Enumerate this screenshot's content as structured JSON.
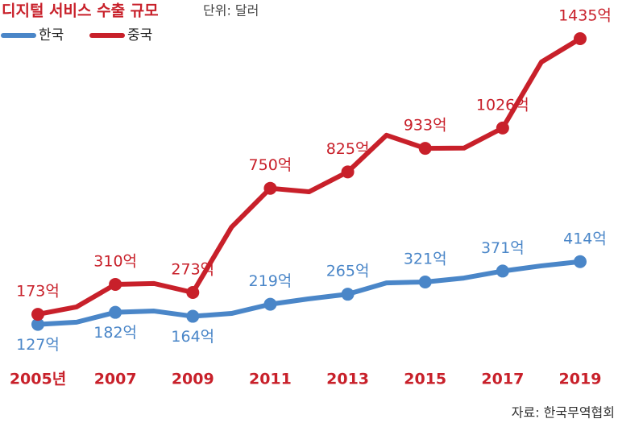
{
  "chart_data": {
    "type": "line",
    "title": "디지털 서비스 수출 규모",
    "subtitle": "단위: 달러",
    "source": "자료: 한국무역협회",
    "categories": [
      "2005년",
      null,
      "2007",
      null,
      "2009",
      null,
      "2011",
      null,
      "2013",
      null,
      "2015",
      null,
      "2017",
      null,
      "2019"
    ],
    "series": [
      {
        "name": "한국",
        "color": "#4a86c8",
        "values": [
          127,
          137,
          182,
          188,
          164,
          177,
          219,
          244,
          265,
          317,
          321,
          339,
          371,
          395,
          414
        ],
        "value_labels": [
          "127억",
          null,
          "182억",
          null,
          "164억",
          null,
          "219억",
          null,
          "265억",
          null,
          "321억",
          null,
          "371억",
          null,
          "414억"
        ]
      },
      {
        "name": "중국",
        "color": "#c8202a",
        "values": [
          173,
          207,
          310,
          314,
          273,
          572,
          750,
          734,
          825,
          993,
          933,
          934,
          1026,
          1328,
          1435
        ],
        "value_labels": [
          "173억",
          null,
          "310억",
          null,
          "273억",
          null,
          "750억",
          null,
          "825억",
          null,
          "933억",
          null,
          "1026억",
          null,
          "1435억"
        ]
      }
    ]
  }
}
